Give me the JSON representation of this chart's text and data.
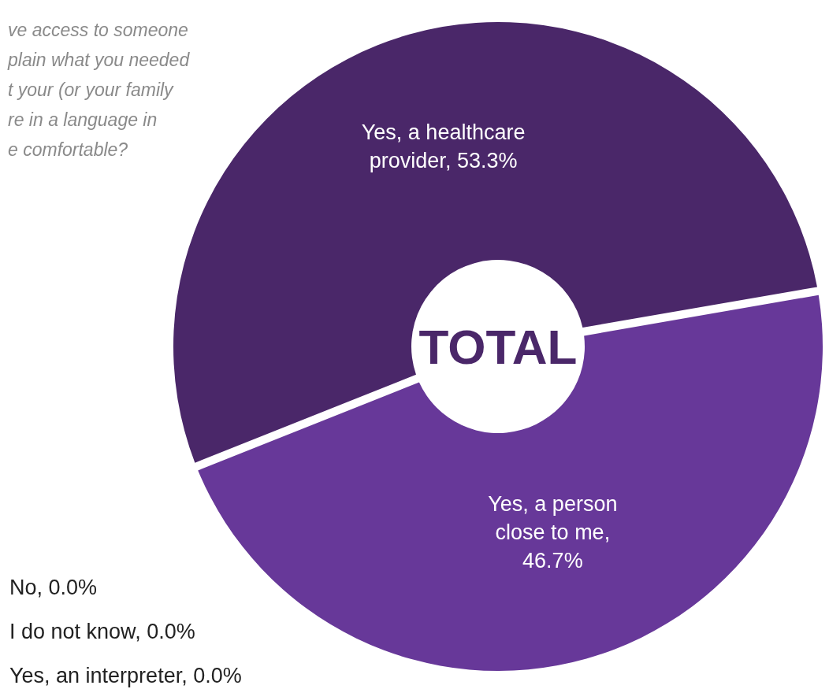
{
  "chart_data": {
    "type": "donut",
    "title": "TOTAL",
    "categories": [
      "Yes, a healthcare provider",
      "Yes, a person close to me",
      "No",
      "I do not know",
      "Yes, an interpreter"
    ],
    "values": [
      53.3,
      46.7,
      0.0,
      0.0,
      0.0
    ],
    "value_labels": [
      ", 53.3%",
      ", 46.7%",
      ", 0.0%",
      ", 0.0%",
      ", 0.0%"
    ],
    "colors": [
      "#4a2769",
      "#673899",
      "#9c7cc4",
      "#b9a3d8",
      "#d6c8ea"
    ],
    "data_labels": true,
    "annotations": [
      "ve access to someone\nplain what you needed\nt your (or your family\nre in a language in\ne comfortable?"
    ]
  }
}
